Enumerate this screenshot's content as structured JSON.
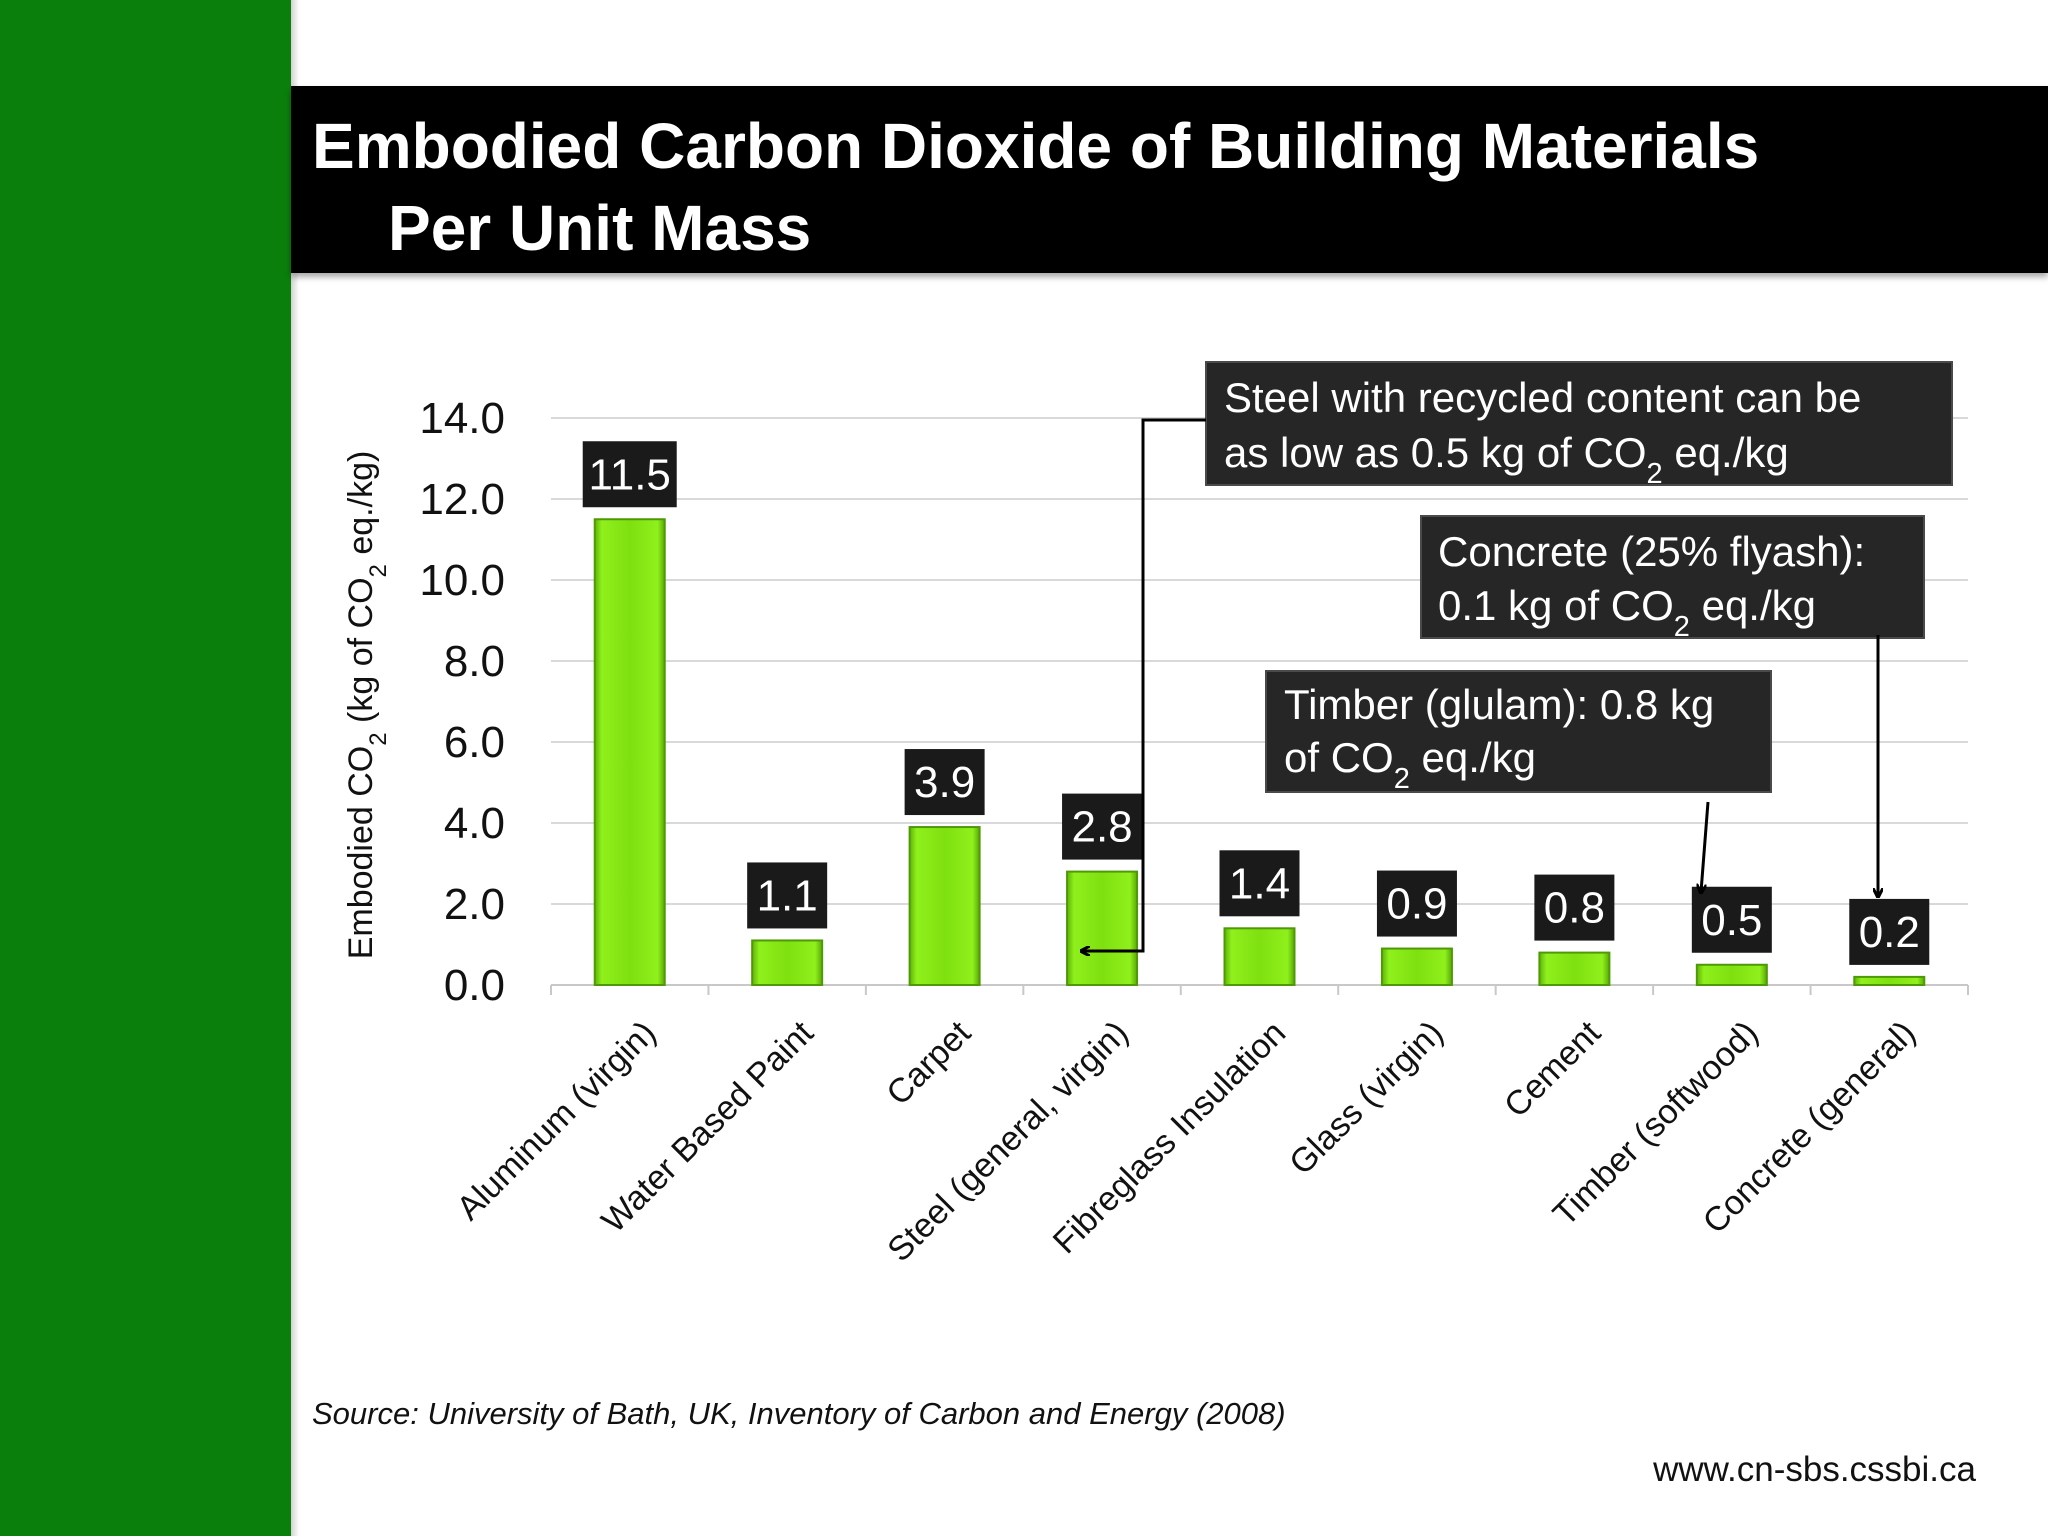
{
  "slide": {
    "title_line1": "Embodied Carbon Dioxide of Building Materials",
    "title_line2": "Per Unit Mass",
    "source": "Source: University of Bath, UK, Inventory of Carbon and Energy (2008)",
    "website": "www.cn-sbs.cssbi.ca"
  },
  "colors": {
    "sidebar": "#0b7f0b",
    "bar": "#7fe010",
    "label_box": "#1a1a1a",
    "callout_box": "#262626"
  },
  "chart_data": {
    "type": "bar",
    "categories": [
      "Aluminum (virgin)",
      "Water Based Paint",
      "Carpet",
      "Steel (general, virgin)",
      "Fibreglass Insulation",
      "Glass (virgin)",
      "Cement",
      "Timber (softwood)",
      "Concrete (general)"
    ],
    "values": [
      11.5,
      1.1,
      3.9,
      2.8,
      1.4,
      0.9,
      0.8,
      0.5,
      0.2
    ],
    "data_labels": [
      "11.5",
      "1.1",
      "3.9",
      "2.8",
      "1.4",
      "0.9",
      "0.8",
      "0.5",
      "0.2"
    ],
    "yticks": [
      "0.0",
      "2.0",
      "4.0",
      "6.0",
      "8.0",
      "10.0",
      "12.0",
      "14.0"
    ],
    "ylim": [
      0,
      14
    ],
    "ylabel": {
      "prefix": "Embodied CO",
      "sub": "2",
      "suffix": " (kg of CO",
      "sub2": "2",
      "suffix2": " eq./kg)"
    },
    "grid": true,
    "legend": "none",
    "annotations": [
      {
        "line1": "Steel with recycled content can be",
        "line2_before": "as low as 0.5 kg of CO",
        "line2_sub": "2",
        "line2_after": " eq./kg",
        "target": "Steel (general, virgin)"
      },
      {
        "line1": "Concrete (25% flyash):",
        "line2_before": "0.1 kg of CO",
        "line2_sub": "2",
        "line2_after": " eq./kg",
        "target": "Concrete (general)"
      },
      {
        "line1": "Timber (glulam): 0.8 kg",
        "line2_before": "of CO",
        "line2_sub": "2",
        "line2_after": " eq./kg",
        "target": "Timber (softwood)"
      }
    ]
  }
}
